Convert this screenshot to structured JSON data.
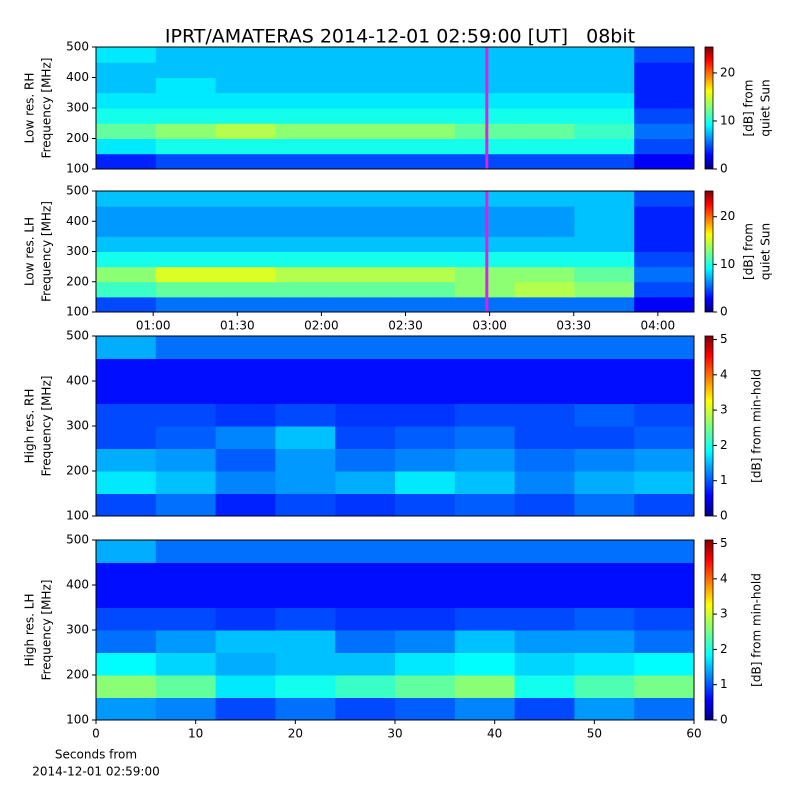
{
  "chart_data": [
    {
      "type": "heatmap",
      "title": "IPRT/AMATERAS 2014-12-01 02:59:00 [UT]   08bit",
      "ylabel": [
        "Low res. RH",
        "Frequency [MHz]"
      ],
      "xlim": [
        39.6,
        252.9
      ],
      "ylim": [
        100,
        500
      ],
      "yticks": [
        100,
        200,
        300,
        400,
        500
      ],
      "colormap": "jet",
      "clim": [
        0,
        25.4
      ],
      "cticks": [
        0,
        10,
        20
      ],
      "colorbar_label": [
        "[dB] from",
        "quiet Sun"
      ],
      "marker_x": 179,
      "marker_color": "#e020e0",
      "z": [
        [
          4,
          5,
          5,
          5,
          5,
          5,
          5,
          5,
          5,
          3
        ],
        [
          9,
          10,
          10,
          10,
          10,
          10,
          10,
          10,
          10,
          5
        ],
        [
          12,
          13,
          14,
          13,
          13,
          13,
          12,
          12,
          11,
          6
        ],
        [
          10,
          10,
          10,
          10,
          10,
          10,
          10,
          10,
          10,
          5
        ],
        [
          9,
          9,
          9,
          9,
          9,
          9,
          9,
          9,
          9,
          4
        ],
        [
          8,
          9,
          8,
          8,
          8,
          8,
          8,
          8,
          8,
          4
        ],
        [
          8,
          8,
          8,
          8,
          8,
          8,
          8,
          8,
          8,
          4
        ],
        [
          9,
          8,
          8,
          8,
          8,
          8,
          8,
          8,
          8,
          5
        ]
      ]
    },
    {
      "type": "heatmap",
      "ylabel": [
        "Low res. LH",
        "Frequency [MHz]"
      ],
      "xlim": [
        39.6,
        252.9
      ],
      "ylim": [
        100,
        500
      ],
      "yticks": [
        100,
        200,
        300,
        400,
        500
      ],
      "xticks": [
        {
          "value": 60,
          "label": "01:00"
        },
        {
          "value": 90,
          "label": "01:30"
        },
        {
          "value": 120,
          "label": "02:00"
        },
        {
          "value": 150,
          "label": "02:30"
        },
        {
          "value": 180,
          "label": "03:00"
        },
        {
          "value": 210,
          "label": "03:30"
        },
        {
          "value": 240,
          "label": "04:00"
        }
      ],
      "colormap": "jet",
      "clim": [
        0,
        25.4
      ],
      "cticks": [
        0,
        10,
        20
      ],
      "colorbar_label": [
        "[dB] from",
        "quiet Sun"
      ],
      "marker_x": 179,
      "marker_color": "#e020e0",
      "z": [
        [
          5,
          6,
          6,
          6,
          6,
          6,
          6,
          6,
          6,
          3
        ],
        [
          11,
          12,
          12,
          12,
          12,
          12,
          13,
          14,
          13,
          5
        ],
        [
          13,
          15,
          15,
          14,
          14,
          14,
          13,
          13,
          12,
          6
        ],
        [
          10,
          10,
          10,
          10,
          10,
          10,
          10,
          10,
          10,
          5
        ],
        [
          8,
          8,
          8,
          8,
          8,
          8,
          8,
          8,
          8,
          4
        ],
        [
          7,
          7,
          7,
          7,
          7,
          7,
          7,
          7,
          8,
          4
        ],
        [
          7,
          7,
          7,
          7,
          7,
          7,
          7,
          7,
          8,
          4
        ],
        [
          8,
          8,
          8,
          8,
          8,
          8,
          8,
          8,
          8,
          5
        ]
      ]
    },
    {
      "type": "heatmap",
      "ylabel": [
        "High res. RH",
        "Frequency [MHz]"
      ],
      "xlim": [
        0,
        60
      ],
      "ylim": [
        100,
        500
      ],
      "yticks": [
        100,
        200,
        300,
        400,
        500
      ],
      "colormap": "jet",
      "clim": [
        0,
        5.1
      ],
      "cticks": [
        0,
        1,
        2,
        3,
        4,
        5
      ],
      "colorbar_label": [
        "[dB] from min-hold"
      ],
      "z": [
        [
          1,
          1.2,
          0.8,
          1,
          0.9,
          1,
          1.1,
          1,
          1.2,
          1
        ],
        [
          1.8,
          1.6,
          1.3,
          1.4,
          1.5,
          1.8,
          1.6,
          1.3,
          1.5,
          1.6
        ],
        [
          1.5,
          1.4,
          1.1,
          1.4,
          1.2,
          1.3,
          1.4,
          1.2,
          1.3,
          1.4
        ],
        [
          1,
          1.1,
          1.3,
          1.6,
          1,
          1.1,
          1.2,
          1,
          1,
          1.1
        ],
        [
          1,
          1,
          0.9,
          1,
          0.9,
          0.9,
          1,
          1,
          1.1,
          1
        ],
        [
          0.7,
          0.7,
          0.7,
          0.7,
          0.7,
          0.7,
          0.7,
          0.7,
          0.7,
          0.7
        ],
        [
          0.7,
          0.7,
          0.7,
          0.7,
          0.7,
          0.7,
          0.7,
          0.7,
          0.7,
          0.7
        ],
        [
          1.5,
          1.2,
          1.2,
          1.2,
          1.2,
          1.2,
          1.2,
          1.2,
          1.2,
          1.2
        ]
      ]
    },
    {
      "type": "heatmap",
      "ylabel": [
        "High res. LH",
        "Frequency [MHz]"
      ],
      "xlabel": [
        "Seconds from",
        "2014-12-01 02:59:00"
      ],
      "xlim": [
        0,
        60
      ],
      "ylim": [
        100,
        500
      ],
      "yticks": [
        100,
        200,
        300,
        400,
        500
      ],
      "xticks": [
        0,
        10,
        20,
        30,
        40,
        50,
        60
      ],
      "colormap": "jet",
      "clim": [
        0,
        5.1
      ],
      "cticks": [
        0,
        1,
        2,
        3,
        4,
        5
      ],
      "colorbar_label": [
        "[dB] from min-hold"
      ],
      "z": [
        [
          1.4,
          1.3,
          1,
          1.2,
          1,
          1.1,
          1.3,
          1,
          1.4,
          1.2
        ],
        [
          2.6,
          2.4,
          1.8,
          2,
          2.2,
          2.4,
          2.6,
          2,
          2.3,
          2.5
        ],
        [
          1.9,
          1.7,
          1.5,
          1.6,
          1.6,
          1.8,
          1.9,
          1.7,
          1.8,
          1.9
        ],
        [
          1.2,
          1.4,
          1.6,
          1.6,
          1.2,
          1.3,
          1.6,
          1.4,
          1.4,
          1.2
        ],
        [
          1,
          1,
          0.9,
          1,
          0.9,
          0.9,
          1,
          1,
          1.1,
          1
        ],
        [
          0.7,
          0.7,
          0.7,
          0.7,
          0.7,
          0.7,
          0.7,
          0.7,
          0.7,
          0.7
        ],
        [
          0.7,
          0.7,
          0.7,
          0.7,
          0.7,
          0.7,
          0.7,
          0.7,
          0.7,
          0.7
        ],
        [
          1.5,
          1.2,
          1.2,
          1.2,
          1.2,
          1.2,
          1.2,
          1.2,
          1.2,
          1.2
        ]
      ]
    }
  ]
}
